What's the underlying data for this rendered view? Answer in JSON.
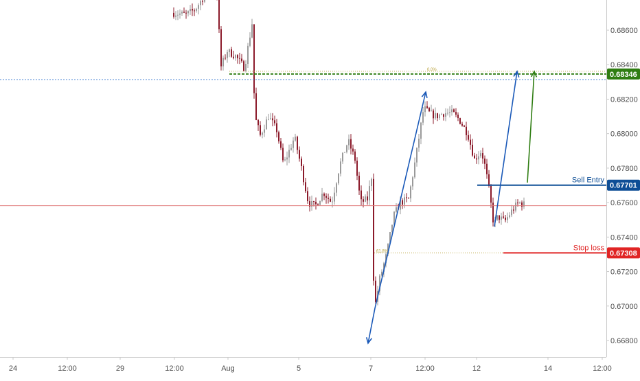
{
  "chart_data": {
    "type": "candlestick",
    "title": "",
    "xlabel": "",
    "ylabel": "",
    "ylim": [
      0.6674,
      0.6876
    ],
    "grid": false,
    "y_ticks": [
      "0.66800",
      "0.67000",
      "0.67200",
      "0.67400",
      "0.67600",
      "0.67800",
      "0.68000",
      "0.68200",
      "0.68400",
      "0.68600"
    ],
    "x_ticks": [
      "24",
      "12:00",
      "29",
      "12:00",
      "Aug",
      "5",
      "7",
      "12:00",
      "12",
      "14",
      "12:00"
    ],
    "current_price": 0.67582,
    "colors": {
      "bull": "#9a9a9a",
      "bear": "#8b1a2a",
      "entry": "#0e4e96",
      "stop": "#e02424",
      "target": "#2f7d12",
      "arrow": "#1a59b8",
      "fib": "#b8a13a",
      "price_line": "#e07a7a",
      "blue_dotted": "#5a8fd8"
    },
    "levels": {
      "target": {
        "value": "0.68346",
        "price": 0.68346
      },
      "entry": {
        "label": "Sell Entry",
        "value": "0.67701",
        "price": 0.67701
      },
      "stop": {
        "label": "Stop loss",
        "value": "0.67308",
        "price": 0.67308
      }
    },
    "fib_labels": {
      "top": "0.0%",
      "bottom": "61.8%"
    }
  }
}
